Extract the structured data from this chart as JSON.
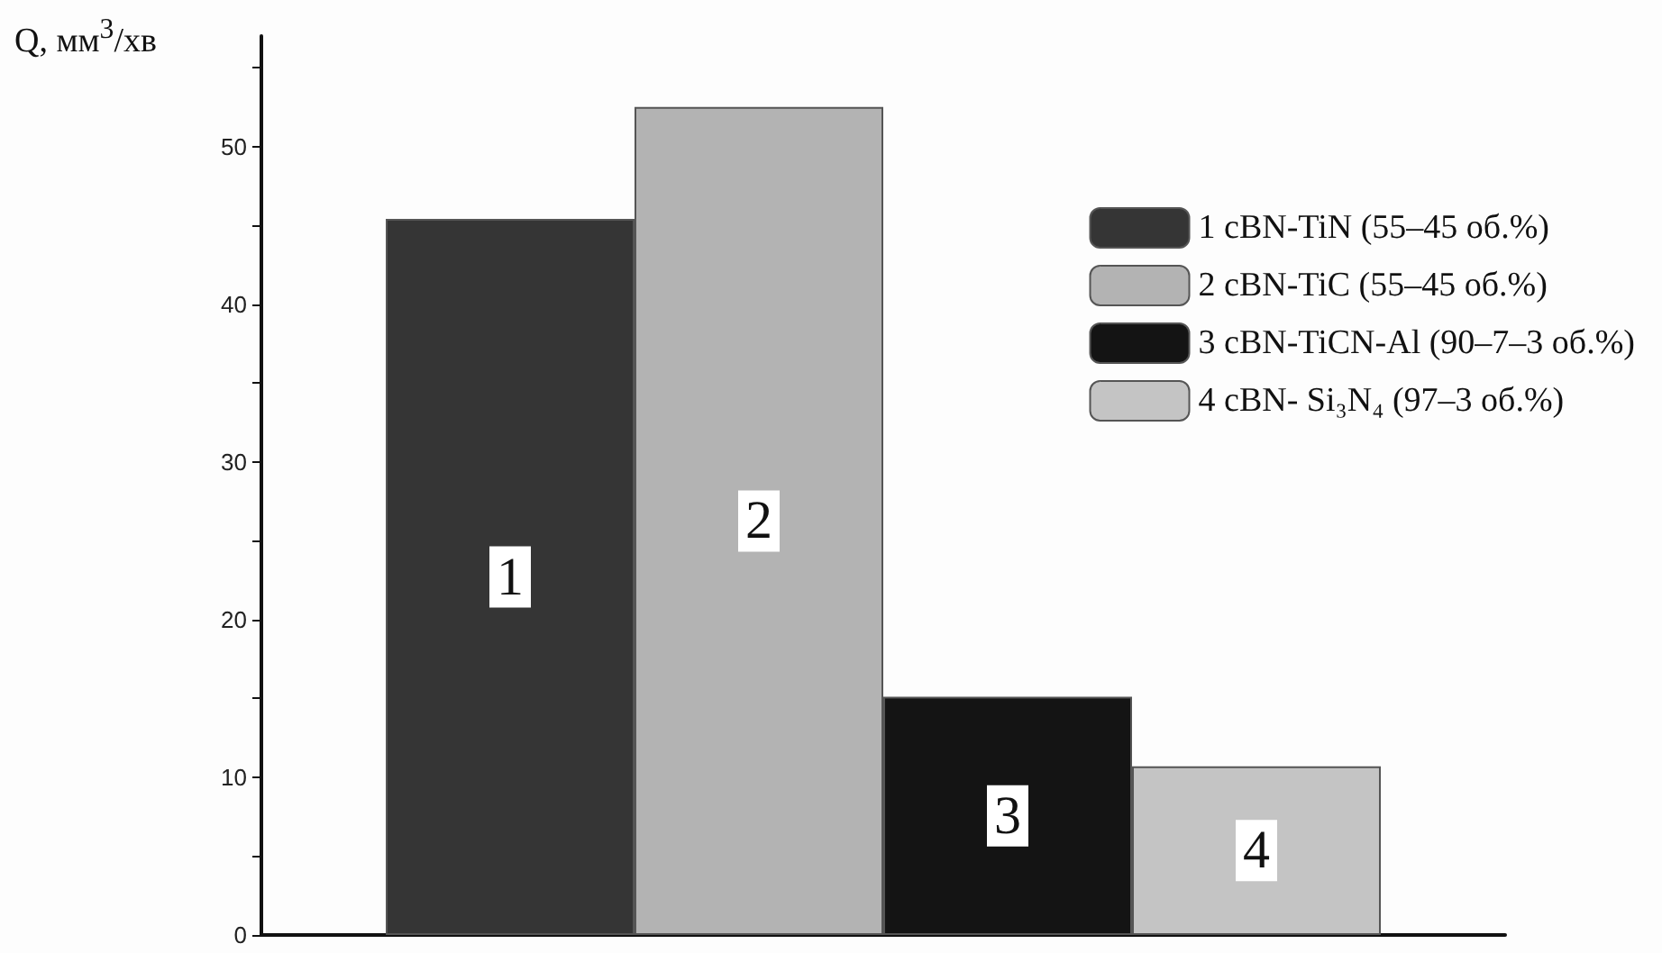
{
  "chart_data": {
    "type": "bar",
    "ylabel": "Q, мм$^{3}$/хв",
    "categories": [
      "1",
      "2",
      "3",
      "4"
    ],
    "tick_labels": "y",
    "legend": "top right",
    "grid": false,
    "series": [
      {
        "name": "1 cBN-TiN (55–45 об.%)",
        "color": "#353535",
        "values": [
          45.4,
          null,
          null,
          null
        ]
      },
      {
        "name": "2 cBN-TiC (55–45 об.%)",
        "color": "#b3b3b3",
        "values": [
          null,
          52.5,
          null,
          null
        ]
      },
      {
        "name": "3 cBN-TiCN-Al (90–7–3 об.%)",
        "color": "#141414",
        "values": [
          null,
          null,
          15.1,
          null
        ]
      },
      {
        "name": "4 cBN- Si₃N₄ (97–3 об.%)",
        "color": "#c4c4c4",
        "values": [
          null,
          null,
          null,
          10.7
        ]
      }
    ],
    "ylim": [
      0,
      57
    ],
    "yticks": [
      0,
      {
        "value": 5,
        "label": null
      },
      10,
      {
        "value": 15,
        "label": null
      },
      20,
      {
        "value": 25,
        "label": null
      },
      30,
      {
        "value": 35,
        "label": null
      },
      40,
      {
        "value": 45,
        "label": null
      },
      50,
      {
        "value": 55,
        "label": null
      }
    ]
  }
}
